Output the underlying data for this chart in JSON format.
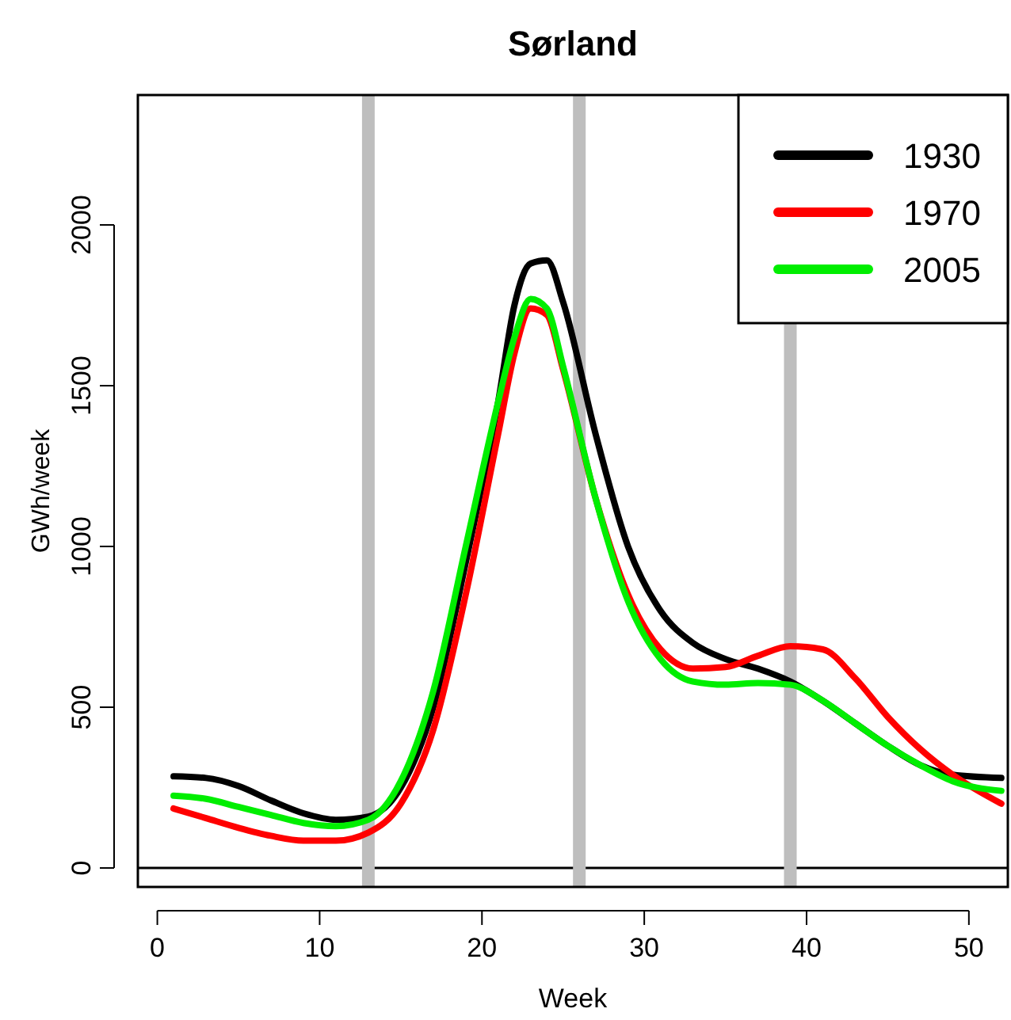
{
  "chart_data": {
    "type": "line",
    "title": "Sørland",
    "xlabel": "Week",
    "ylabel": "GWh/week",
    "xlim": [
      -1.2,
      52.4
    ],
    "xticks": [
      0,
      10,
      20,
      30,
      40,
      50
    ],
    "ylim": [
      -59,
      2404
    ],
    "yticks": [
      0,
      500,
      1000,
      1500,
      2000
    ],
    "grid": false,
    "legend": "top right",
    "line_style": "solid",
    "marker": "none",
    "ref_lines": [
      {
        "axis": "y",
        "value": 0,
        "color": "#000000"
      },
      {
        "axis": "x",
        "value": 13,
        "color": "#bebebe"
      },
      {
        "axis": "x",
        "value": 26,
        "color": "#bebebe"
      },
      {
        "axis": "x",
        "value": 39,
        "color": "#bebebe"
      }
    ],
    "x": [
      1,
      3,
      5,
      7,
      9,
      11,
      13,
      15,
      17,
      19,
      21,
      22,
      23,
      24,
      25,
      27,
      29,
      31,
      33,
      35,
      37,
      39,
      41,
      43,
      45,
      47,
      49,
      52
    ],
    "series": [
      {
        "name": "1930",
        "color": "#000000",
        "values": [
          285,
          280,
          255,
          210,
          170,
          150,
          160,
          250,
          500,
          950,
          1450,
          1750,
          1880,
          1890,
          1760,
          1350,
          1000,
          800,
          700,
          650,
          620,
          580,
          520,
          450,
          380,
          320,
          290,
          280
        ]
      },
      {
        "name": "1970",
        "color": "#ff0000",
        "values": [
          185,
          155,
          125,
          100,
          85,
          85,
          110,
          200,
          430,
          850,
          1350,
          1600,
          1740,
          1720,
          1550,
          1150,
          850,
          680,
          620,
          625,
          660,
          690,
          680,
          590,
          470,
          370,
          290,
          200
        ]
      },
      {
        "name": "2005",
        "color": "#00ee00",
        "values": [
          225,
          215,
          190,
          165,
          140,
          130,
          150,
          270,
          550,
          1000,
          1450,
          1650,
          1770,
          1740,
          1560,
          1150,
          830,
          650,
          580,
          570,
          575,
          570,
          520,
          450,
          380,
          320,
          270,
          240
        ]
      }
    ]
  }
}
